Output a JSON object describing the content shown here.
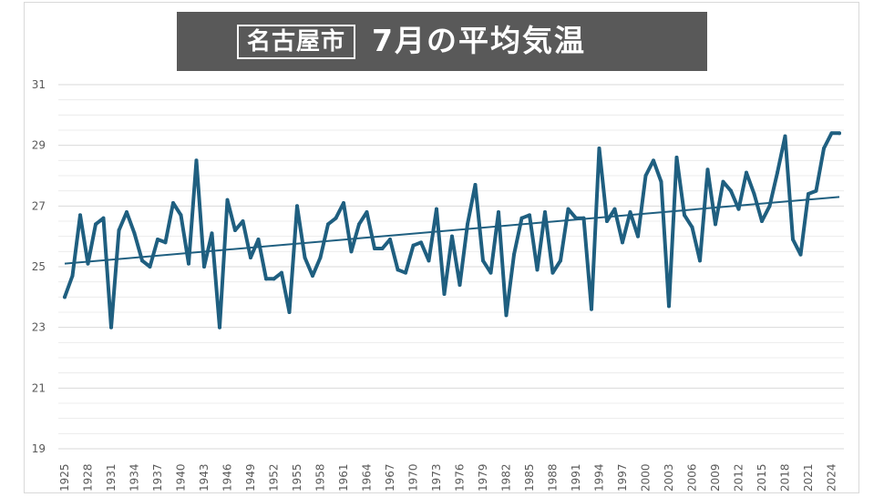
{
  "title": {
    "city": "名古屋市",
    "main": "7月の平均気温"
  },
  "colors": {
    "line": "#1f5f80",
    "trend": "#1f5f80",
    "grid_major": "#d9d9d9",
    "grid_minor": "#ececec",
    "banner": "#595959",
    "tick_text": "#595959"
  },
  "chart_data": {
    "type": "line",
    "title": "7月の平均気温",
    "ylim": [
      19,
      31
    ],
    "yticks": [
      19,
      21,
      23,
      25,
      27,
      29,
      31
    ],
    "xticks": [
      1925,
      1928,
      1931,
      1934,
      1937,
      1940,
      1943,
      1946,
      1949,
      1952,
      1955,
      1958,
      1961,
      1964,
      1967,
      1970,
      1973,
      1976,
      1979,
      1982,
      1985,
      1988,
      1991,
      1994,
      1997,
      2000,
      2003,
      2006,
      2009,
      2012,
      2015,
      2018,
      2021,
      2024
    ],
    "grid": true,
    "series": [
      {
        "x": [
          1925,
          1926,
          1927,
          1928,
          1929,
          1930,
          1931,
          1932,
          1933,
          1934,
          1935,
          1936,
          1937,
          1938,
          1939,
          1940,
          1941,
          1942,
          1943,
          1944,
          1945,
          1946,
          1947,
          1948,
          1949,
          1950,
          1951,
          1952,
          1953,
          1954,
          1955,
          1956,
          1957,
          1958,
          1959,
          1960,
          1961,
          1962,
          1963,
          1964,
          1965,
          1966,
          1967,
          1968,
          1969,
          1970,
          1971,
          1972,
          1973,
          1974,
          1975,
          1976,
          1977,
          1978,
          1979,
          1980,
          1981,
          1982,
          1983,
          1984,
          1985,
          1986,
          1987,
          1988,
          1989,
          1990,
          1991,
          1992,
          1993,
          1994,
          1995,
          1996,
          1997,
          1998,
          1999,
          2000,
          2001,
          2002,
          2003,
          2004,
          2005,
          2006,
          2007,
          2008,
          2009,
          2010,
          2011,
          2012,
          2013,
          2014,
          2015,
          2016,
          2017,
          2018,
          2019,
          2020,
          2021,
          2022,
          2023,
          2024,
          2025
        ],
        "values": [
          24.0,
          24.7,
          26.7,
          25.1,
          26.4,
          26.6,
          23.0,
          26.2,
          26.8,
          26.1,
          25.2,
          25.0,
          25.9,
          25.8,
          27.1,
          26.7,
          25.1,
          28.5,
          25.0,
          26.1,
          23.0,
          27.2,
          26.2,
          26.5,
          25.3,
          25.9,
          24.6,
          24.6,
          24.8,
          23.5,
          27.0,
          25.3,
          24.7,
          25.3,
          26.4,
          26.6,
          27.1,
          25.5,
          26.4,
          26.8,
          25.6,
          25.6,
          25.9,
          24.9,
          24.8,
          25.7,
          25.8,
          25.2,
          26.9,
          24.1,
          26.0,
          24.4,
          26.4,
          27.7,
          25.2,
          24.8,
          26.8,
          23.4,
          25.4,
          26.6,
          26.7,
          24.9,
          26.8,
          24.8,
          25.2,
          26.9,
          26.6,
          26.6,
          23.6,
          28.9,
          26.5,
          26.9,
          25.8,
          26.8,
          26.0,
          28.0,
          28.5,
          27.8,
          23.7,
          28.6,
          26.7,
          26.3,
          25.2,
          28.2,
          26.4,
          27.8,
          27.5,
          26.9,
          28.1,
          27.4,
          26.5,
          27.0,
          28.1,
          29.3,
          25.9,
          25.4,
          27.4,
          27.5,
          28.9,
          29.4,
          29.4
        ]
      },
      {
        "kind": "trend",
        "x": [
          1925,
          2025
        ],
        "values": [
          25.1,
          27.3
        ]
      }
    ]
  }
}
